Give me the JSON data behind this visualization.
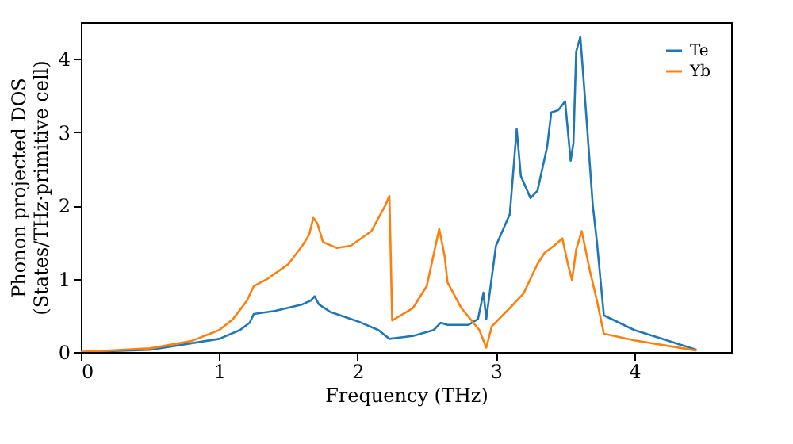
{
  "chart_data": {
    "type": "line",
    "xlabel": "Frequency (THz)",
    "ylabel": "Phonon projected DOS\n(States/THz·primitive cell)",
    "xlim": [
      0,
      4.7
    ],
    "ylim": [
      0,
      4.5
    ],
    "xticks": [
      0,
      1,
      2,
      3,
      4
    ],
    "yticks": [
      0,
      1,
      2,
      3,
      4
    ],
    "grid": false,
    "legend": "top right",
    "series": [
      {
        "name": "Te",
        "color": "#1f77b4",
        "x": [
          0,
          0.5,
          1.0,
          1.15,
          1.22,
          1.25,
          1.4,
          1.6,
          1.66,
          1.69,
          1.72,
          1.8,
          2.0,
          2.15,
          2.23,
          2.4,
          2.55,
          2.6,
          2.65,
          2.8,
          2.87,
          2.91,
          2.93,
          3.0,
          3.1,
          3.15,
          3.18,
          3.25,
          3.3,
          3.37,
          3.4,
          3.45,
          3.5,
          3.54,
          3.56,
          3.58,
          3.61,
          3.65,
          3.7,
          3.73,
          3.78,
          4.0,
          4.2,
          4.45
        ],
        "values": [
          0,
          0.03,
          0.18,
          0.3,
          0.4,
          0.52,
          0.56,
          0.65,
          0.7,
          0.76,
          0.65,
          0.55,
          0.42,
          0.3,
          0.18,
          0.22,
          0.3,
          0.4,
          0.37,
          0.37,
          0.45,
          0.81,
          0.45,
          1.45,
          1.88,
          3.04,
          2.4,
          2.1,
          2.2,
          2.8,
          3.27,
          3.3,
          3.42,
          2.61,
          2.85,
          4.1,
          4.3,
          3.3,
          2.0,
          1.5,
          0.5,
          0.3,
          0.18,
          0.03
        ]
      },
      {
        "name": "Yb",
        "color": "#ff7f0e",
        "x": [
          0,
          0.5,
          0.8,
          1.0,
          1.1,
          1.2,
          1.25,
          1.35,
          1.5,
          1.6,
          1.65,
          1.68,
          1.71,
          1.75,
          1.85,
          1.95,
          2.1,
          2.2,
          2.23,
          2.25,
          2.4,
          2.5,
          2.59,
          2.63,
          2.65,
          2.75,
          2.88,
          2.93,
          2.97,
          3.1,
          3.2,
          3.3,
          3.35,
          3.42,
          3.48,
          3.52,
          3.55,
          3.58,
          3.62,
          3.68,
          3.73,
          3.78,
          4.0,
          4.45
        ],
        "values": [
          0,
          0.05,
          0.15,
          0.3,
          0.45,
          0.7,
          0.9,
          1.0,
          1.2,
          1.45,
          1.6,
          1.83,
          1.75,
          1.5,
          1.42,
          1.45,
          1.65,
          2.0,
          2.13,
          0.43,
          0.6,
          0.9,
          1.68,
          1.3,
          0.95,
          0.6,
          0.3,
          0.06,
          0.35,
          0.6,
          0.8,
          1.2,
          1.35,
          1.45,
          1.55,
          1.2,
          0.98,
          1.4,
          1.65,
          1.1,
          0.7,
          0.25,
          0.16,
          0.02
        ]
      }
    ]
  }
}
